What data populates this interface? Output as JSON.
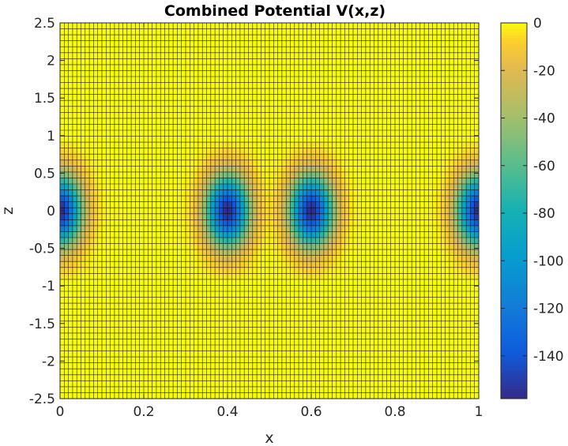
{
  "chart_data": {
    "type": "heatmap",
    "title": "Combined Potential V(x,z)",
    "xlabel": "x",
    "ylabel": "z",
    "xlim": [
      0,
      1
    ],
    "ylim": [
      -2.5,
      2.5
    ],
    "x_ticks": [
      "0",
      "0.2",
      "0.4",
      "0.6",
      "0.8",
      "1"
    ],
    "x_tick_values": [
      0,
      0.2,
      0.4,
      0.6,
      0.8,
      1
    ],
    "y_ticks": [
      "2.5",
      "2",
      "1.5",
      "1",
      "0.5",
      "0",
      "-0.5",
      "-1",
      "-1.5",
      "-2",
      "-2.5"
    ],
    "y_tick_values": [
      2.5,
      2,
      1.5,
      1,
      0.5,
      0,
      -0.5,
      -1,
      -1.5,
      -2,
      -2.5
    ],
    "colorbar": {
      "limits": [
        -158,
        0
      ],
      "ticks": [
        "0",
        "-20",
        "-40",
        "-60",
        "-80",
        "-100",
        "-120",
        "-140"
      ],
      "tick_values": [
        0,
        -20,
        -40,
        -60,
        -80,
        -100,
        -120,
        -140
      ],
      "colormap": "parula"
    },
    "grid": {
      "nx": 100,
      "nz": 63,
      "edge_lines": true
    },
    "wells": [
      {
        "x_center": 0.0,
        "z_center": 0.0,
        "min_value": -158
      },
      {
        "x_center": 0.4,
        "z_center": 0.0,
        "min_value": -158
      },
      {
        "x_center": 0.6,
        "z_center": 0.0,
        "min_value": -158
      },
      {
        "x_center": 1.0,
        "z_center": 0.0,
        "min_value": -158
      }
    ],
    "z_cutoff": 0.95
  }
}
